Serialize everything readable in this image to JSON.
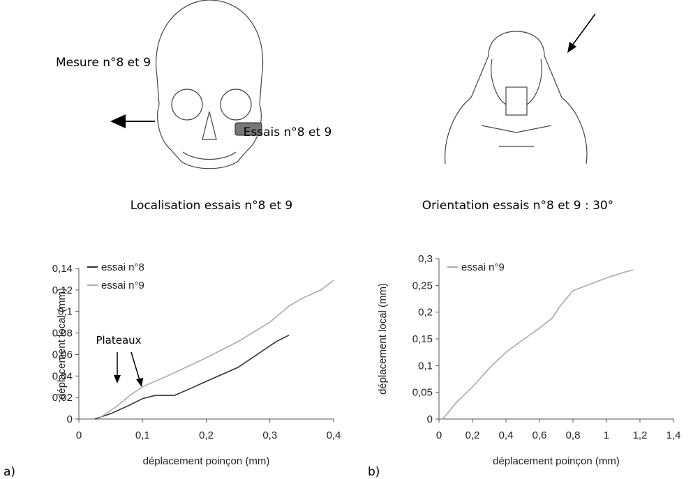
{
  "illustrations": [
    {
      "labels": [
        "Mesure n°8 et 9",
        "Essais n°8 et 9"
      ],
      "caption": "Localisation essais n°8 et 9"
    },
    {
      "caption": "Orientation essais n°8 et 9 : 30°"
    }
  ],
  "chart_data": [
    {
      "type": "line",
      "panel": "a)",
      "xlabel": "déplacement poinçon (mm)",
      "ylabel": "déplacement local (mm)",
      "annotation": "Plateaux",
      "xlim": [
        0,
        0.4
      ],
      "ylim": [
        0,
        0.14
      ],
      "xticks": [
        0,
        {
          "value": 0.1,
          "label": "0,1"
        },
        {
          "value": 0.2,
          "label": "0,2"
        },
        {
          "value": 0.3,
          "label": "0,3"
        },
        {
          "value": 0.4,
          "label": "0,4"
        }
      ],
      "yticks": [
        0,
        {
          "value": 0.02,
          "label": "0,02"
        },
        {
          "value": 0.04,
          "label": "0,04"
        },
        {
          "value": 0.06,
          "label": "0,06"
        },
        {
          "value": 0.08,
          "label": "0,08"
        },
        {
          "value": 0.1,
          "label": "0,1"
        },
        {
          "value": 0.12,
          "label": "0,12"
        },
        {
          "value": 0.14,
          "label": "0,14"
        }
      ],
      "series": [
        {
          "name": "essai n°8",
          "color": "#333333",
          "x": [
            0.025,
            0.05,
            0.08,
            0.1,
            0.12,
            0.15,
            0.17,
            0.2,
            0.25,
            0.28,
            0.31,
            0.33
          ],
          "values": [
            0,
            0.005,
            0.013,
            0.019,
            0.022,
            0.022,
            0.027,
            0.035,
            0.048,
            0.06,
            0.072,
            0.078
          ]
        },
        {
          "name": "essai n°9",
          "color": "#aaaaaa",
          "x": [
            0.03,
            0.06,
            0.08,
            0.1,
            0.15,
            0.2,
            0.25,
            0.3,
            0.33,
            0.35,
            0.38,
            0.4
          ],
          "values": [
            0,
            0.012,
            0.022,
            0.03,
            0.043,
            0.057,
            0.072,
            0.09,
            0.105,
            0.112,
            0.12,
            0.129
          ]
        }
      ]
    },
    {
      "type": "line",
      "panel": "b)",
      "xlabel": "déplacement poinçon (mm)",
      "ylabel": "déplacement local (mm)",
      "xlim": [
        0,
        1.4
      ],
      "ylim": [
        0,
        0.3
      ],
      "xticks": [
        0,
        {
          "value": 0.2,
          "label": "0,2"
        },
        {
          "value": 0.4,
          "label": "0,4"
        },
        {
          "value": 0.6,
          "label": "0,6"
        },
        {
          "value": 0.8,
          "label": "0,8"
        },
        1,
        {
          "value": 1.2,
          "label": "1,2"
        },
        {
          "value": 1.4,
          "label": "1,4"
        }
      ],
      "yticks": [
        0,
        {
          "value": 0.05,
          "label": "0,05"
        },
        {
          "value": 0.1,
          "label": "0,1"
        },
        {
          "value": 0.15,
          "label": "0,15"
        },
        {
          "value": 0.2,
          "label": "0,2"
        },
        {
          "value": 0.25,
          "label": "0,25"
        },
        {
          "value": 0.3,
          "label": "0,3"
        }
      ],
      "series": [
        {
          "name": "essai n°9",
          "color": "#aaaaaa",
          "x": [
            0.02,
            0.05,
            0.1,
            0.2,
            0.3,
            0.4,
            0.5,
            0.6,
            0.68,
            0.72,
            0.8,
            0.9,
            1.0,
            1.1,
            1.16
          ],
          "values": [
            0,
            0.01,
            0.03,
            0.06,
            0.095,
            0.125,
            0.148,
            0.17,
            0.19,
            0.21,
            0.24,
            0.252,
            0.264,
            0.274,
            0.279
          ]
        }
      ]
    }
  ]
}
